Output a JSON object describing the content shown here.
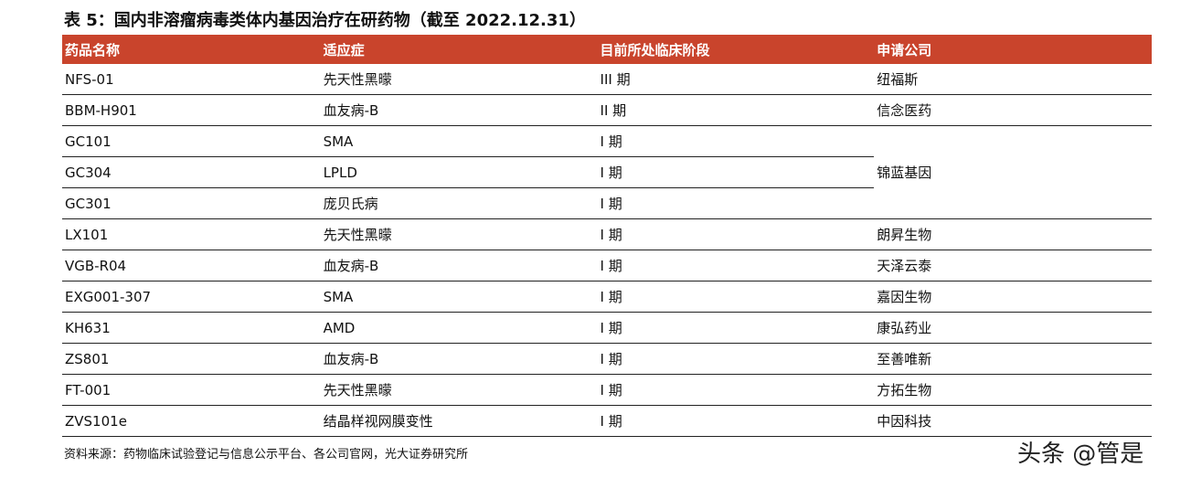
{
  "header": {
    "title": "表 5：国内非溶瘤病毒类体内基因治疗在研药物（截至 2022.12.31）"
  },
  "table": {
    "columns": [
      "药品名称",
      "适应症",
      "目前所处临床阶段",
      "申请公司"
    ],
    "rows": [
      {
        "drug": "NFS-01",
        "indication": "先天性黑曚",
        "phase": "III 期",
        "company": "纽福斯"
      },
      {
        "drug": "BBM-H901",
        "indication": "血友病-B",
        "phase": "II 期",
        "company": "信念医药"
      },
      {
        "drug": "GC101",
        "indication": "SMA",
        "phase": "I 期",
        "company": "锦蓝基因"
      },
      {
        "drug": "GC304",
        "indication": "LPLD",
        "phase": "I 期"
      },
      {
        "drug": "GC301",
        "indication": "庞贝氏病",
        "phase": "I 期"
      },
      {
        "drug": "LX101",
        "indication": "先天性黑曚",
        "phase": "I 期",
        "company": "朗昇生物"
      },
      {
        "drug": "VGB-R04",
        "indication": "血友病-B",
        "phase": "I 期",
        "company": "天泽云泰"
      },
      {
        "drug": "EXG001-307",
        "indication": "SMA",
        "phase": "I 期",
        "company": "嘉因生物"
      },
      {
        "drug": "KH631",
        "indication": "AMD",
        "phase": "I 期",
        "company": "康弘药业"
      },
      {
        "drug": "ZS801",
        "indication": "血友病-B",
        "phase": "I 期",
        "company": "至善唯新"
      },
      {
        "drug": "FT-001",
        "indication": "先天性黑曚",
        "phase": "I 期",
        "company": "方拓生物"
      },
      {
        "drug": "ZVS101e",
        "indication": "结晶样视网膜变性",
        "phase": "I 期",
        "company": "中因科技"
      }
    ]
  },
  "footer": {
    "source": "资料来源：药物临床试验登记与信息公示平台、各公司官网，光大证券研究所",
    "watermark": "头条 @管是"
  }
}
